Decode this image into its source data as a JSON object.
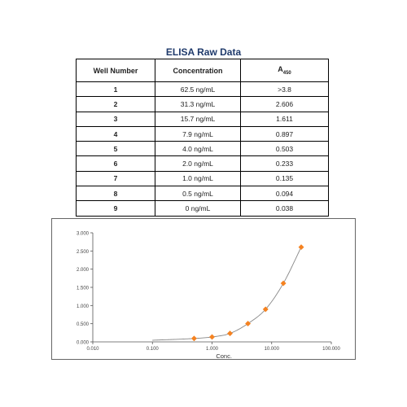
{
  "table": {
    "title": "ELISA Raw Data",
    "headers": {
      "well": "Well Number",
      "conc": "Concentration",
      "abs_main": "A",
      "abs_sub": "450"
    },
    "rows": [
      {
        "well": "1",
        "conc": "62.5 ng/mL",
        "abs": ">3.8"
      },
      {
        "well": "2",
        "conc": "31.3 ng/mL",
        "abs": "2.606"
      },
      {
        "well": "3",
        "conc": "15.7 ng/mL",
        "abs": "1.611"
      },
      {
        "well": "4",
        "conc": "7.9 ng/mL",
        "abs": "0.897"
      },
      {
        "well": "5",
        "conc": "4.0 ng/mL",
        "abs": "0.503"
      },
      {
        "well": "6",
        "conc": "2.0 ng/mL",
        "abs": "0.233"
      },
      {
        "well": "7",
        "conc": "1.0 ng/mL",
        "abs": "0.135"
      },
      {
        "well": "8",
        "conc": "0.5 ng/mL",
        "abs": "0.094"
      },
      {
        "well": "9",
        "conc": "0 ng/mL",
        "abs": "0.038"
      }
    ]
  },
  "chart_data": {
    "type": "scatter",
    "title": "",
    "xlabel": "Conc.",
    "ylabel": "",
    "x_scale": "log",
    "xlim": [
      0.01,
      100
    ],
    "ylim": [
      0,
      3
    ],
    "x_ticks": [
      "0.010",
      "0.100",
      "1.000",
      "10.000",
      "100.000"
    ],
    "y_ticks": [
      "0.000",
      "0.500",
      "1.000",
      "1.500",
      "2.000",
      "2.500",
      "3.000"
    ],
    "grid": false,
    "legend": "none",
    "marker_color": "#f58220",
    "line_color": "#888888",
    "series": [
      {
        "x": [
          0.5,
          1.0,
          2.0,
          4.0,
          7.9,
          15.7,
          31.3
        ],
        "y": [
          0.094,
          0.135,
          0.233,
          0.503,
          0.897,
          1.611,
          2.606
        ]
      }
    ]
  }
}
